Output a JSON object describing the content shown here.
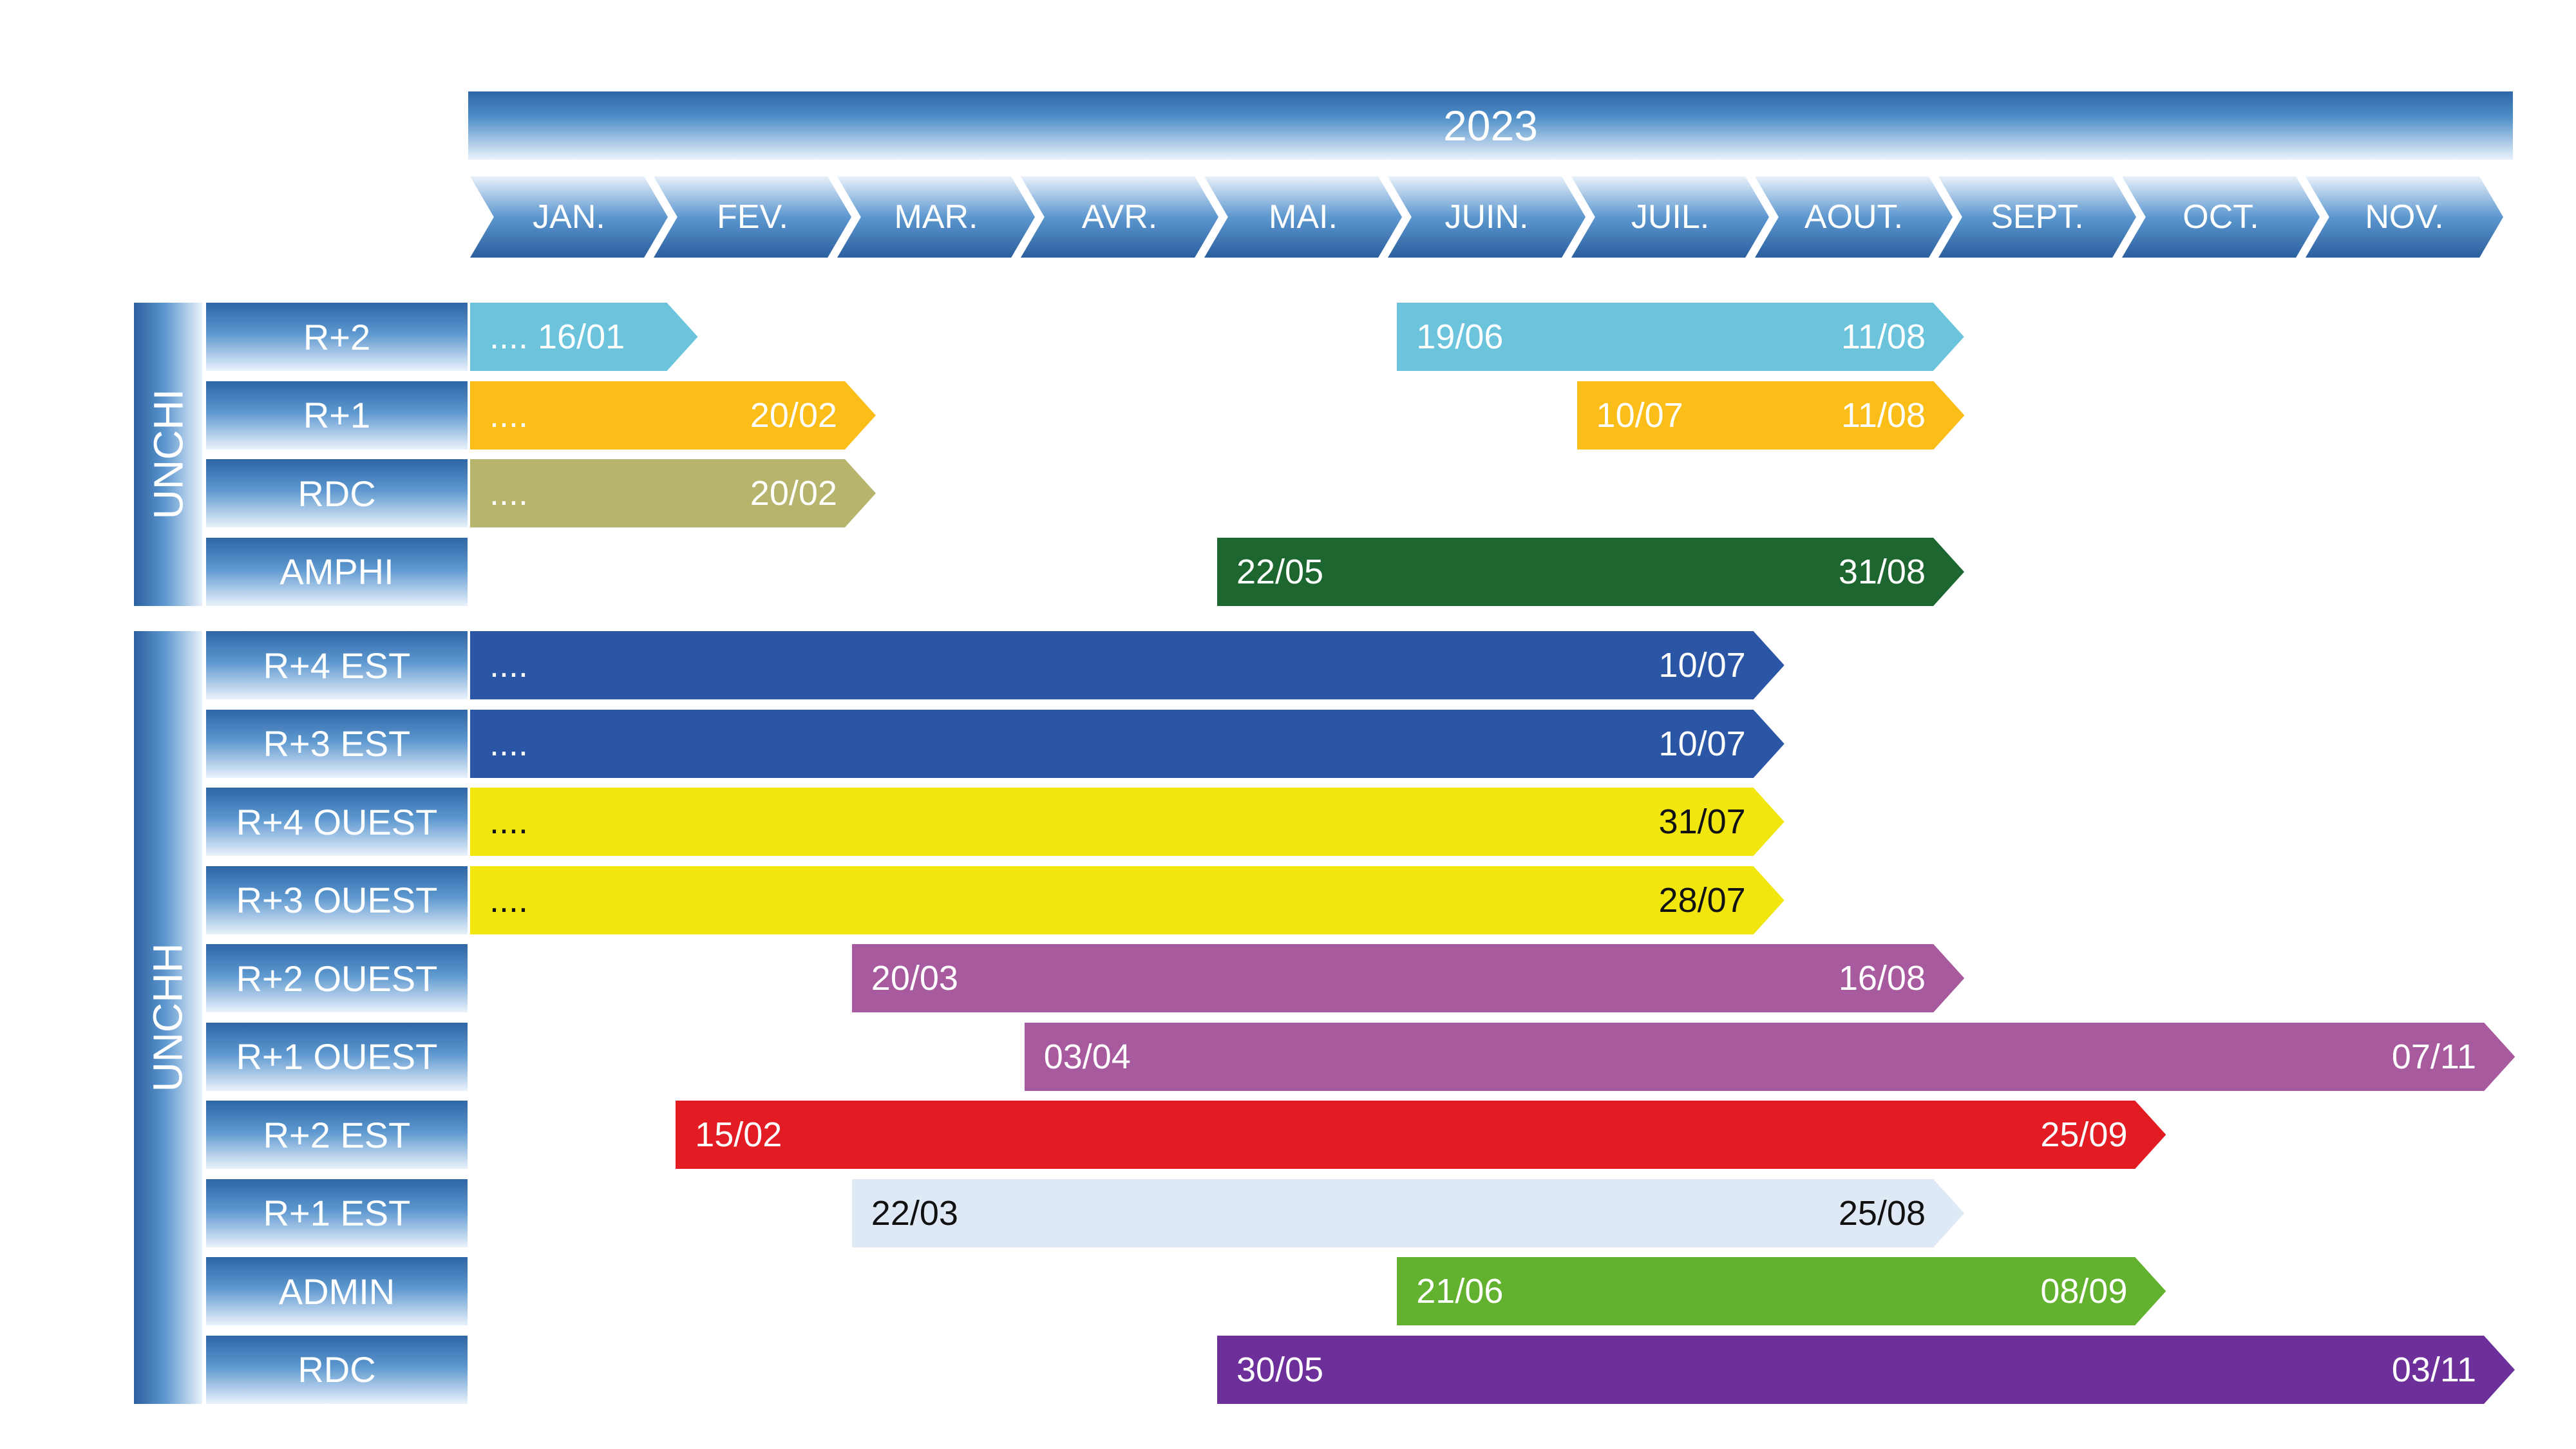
{
  "year": "2023",
  "months": [
    "JAN.",
    "FEV.",
    "MAR.",
    "AVR.",
    "MAI.",
    "JUIN.",
    "JUIL.",
    "AOUT.",
    "SEPT.",
    "OCT.",
    "NOV."
  ],
  "groups": [
    {
      "name": "UNCHI",
      "rows": [
        {
          "label": "R+2",
          "tasks": [
            {
              "start_label": "....  16/01",
              "end_label": "",
              "x0": 0,
              "x1": 1.1,
              "color": "#6cc4dc",
              "text": "#ffffff"
            },
            {
              "start_label": "19/06",
              "end_label": "11/08",
              "x0": 5.05,
              "x1": 8.0,
              "color": "#6cc4dc",
              "text": "#ffffff"
            }
          ]
        },
        {
          "label": "R+1",
          "tasks": [
            {
              "start_label": "....",
              "end_label": "20/02",
              "x0": 0,
              "x1": 2.07,
              "color": "#fbbd17",
              "text": "#ffffff"
            },
            {
              "start_label": "10/07",
              "end_label": "11/08",
              "x0": 6.03,
              "x1": 8.0,
              "color": "#fbbd17",
              "text": "#ffffff"
            }
          ]
        },
        {
          "label": "RDC",
          "tasks": [
            {
              "start_label": "....",
              "end_label": "20/02",
              "x0": 0,
              "x1": 2.07,
              "color": "#b7b56d",
              "text": "#ffffff"
            }
          ]
        },
        {
          "label": "AMPHI",
          "tasks": [
            {
              "start_label": "22/05",
              "end_label": "31/08",
              "x0": 4.07,
              "x1": 8.0,
              "color": "#1e6630",
              "text": "#ffffff"
            }
          ]
        }
      ]
    },
    {
      "name": "UNCHH",
      "rows": [
        {
          "label": "R+4 EST",
          "tasks": [
            {
              "start_label": "....",
              "end_label": "10/07",
              "x0": 0,
              "x1": 7.02,
              "color": "#2b56a5",
              "text": "#ffffff"
            }
          ]
        },
        {
          "label": "R+3 EST",
          "tasks": [
            {
              "start_label": "....",
              "end_label": "10/07",
              "x0": 0,
              "x1": 7.02,
              "color": "#2b56a5",
              "text": "#ffffff"
            }
          ]
        },
        {
          "label": "R+4 OUEST",
          "tasks": [
            {
              "start_label": "....",
              "end_label": "31/07",
              "x0": 0,
              "x1": 7.02,
              "color": "#f1e60d",
              "text": "#111111"
            }
          ]
        },
        {
          "label": "R+3 OUEST",
          "tasks": [
            {
              "start_label": "....",
              "end_label": "28/07",
              "x0": 0,
              "x1": 7.02,
              "color": "#f1e60d",
              "text": "#111111"
            }
          ]
        },
        {
          "label": "R+2 OUEST",
          "tasks": [
            {
              "start_label": "20/03",
              "end_label": "16/08",
              "x0": 2.08,
              "x1": 8.0,
              "color": "#a75a9e",
              "text": "#ffffff"
            }
          ]
        },
        {
          "label": "R+1 OUEST",
          "tasks": [
            {
              "start_label": "03/04",
              "end_label": "07/11",
              "x0": 3.02,
              "x1": 11.0,
              "color": "#a75a9e",
              "text": "#ffffff"
            }
          ]
        },
        {
          "label": "R+2 EST",
          "tasks": [
            {
              "start_label": "15/02",
              "end_label": "25/09",
              "x0": 1.12,
              "x1": 9.1,
              "color": "#e31b23",
              "text": "#ffffff"
            }
          ]
        },
        {
          "label": "R+1 EST",
          "tasks": [
            {
              "start_label": "22/03",
              "end_label": "25/08",
              "x0": 2.08,
              "x1": 8.0,
              "color": "#dfe9f5",
              "text": "#111111"
            }
          ]
        },
        {
          "label": "ADMIN",
          "tasks": [
            {
              "start_label": "21/06",
              "end_label": "08/09",
              "x0": 5.05,
              "x1": 9.1,
              "color": "#63b22f",
              "text": "#ffffff"
            }
          ]
        },
        {
          "label": "RDC",
          "tasks": [
            {
              "start_label": "30/05",
              "end_label": "03/11",
              "x0": 4.07,
              "x1": 11.0,
              "color": "#6d2f9a",
              "text": "#ffffff"
            }
          ]
        }
      ]
    }
  ]
}
